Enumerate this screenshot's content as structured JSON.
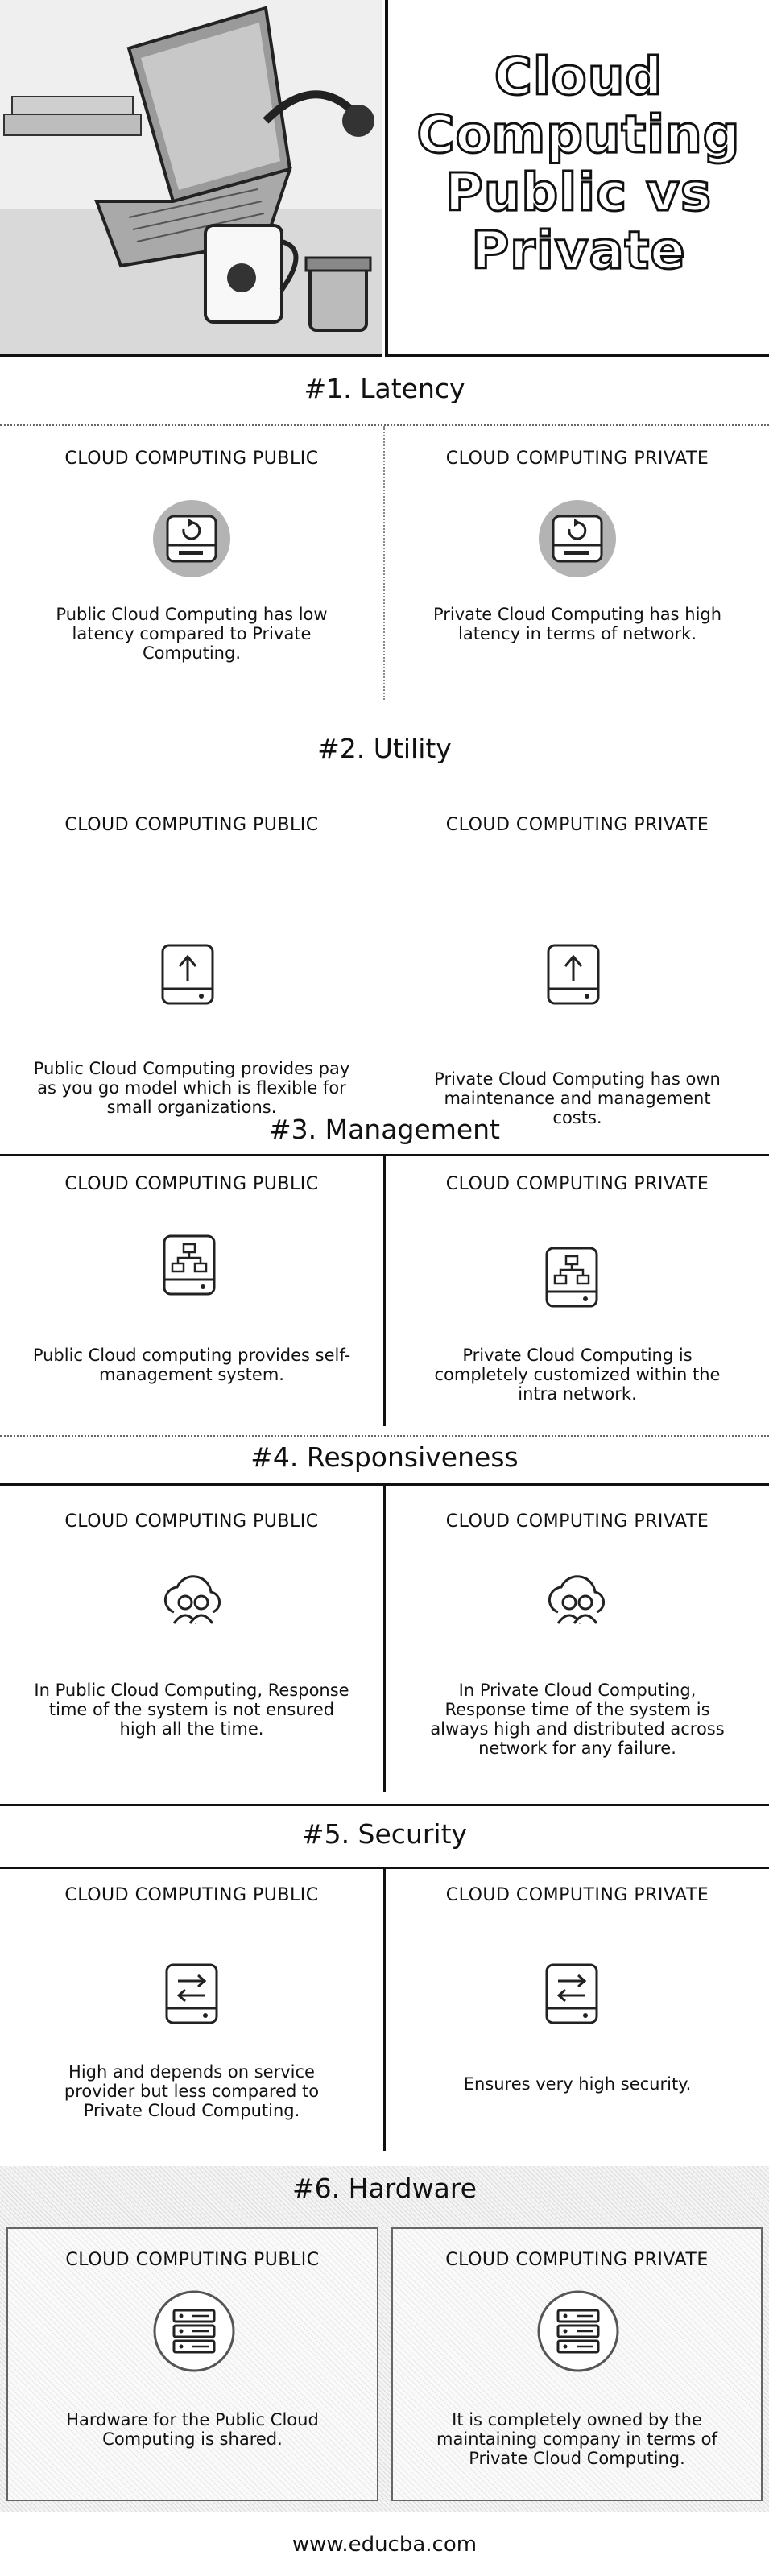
{
  "header": {
    "title_lines": [
      "Cloud",
      "Computing",
      "Public vs",
      "Private"
    ]
  },
  "sections": [
    {
      "title": "#1. Latency",
      "public": {
        "heading": "CLOUD COMPUTING PUBLIC",
        "text": "Public Cloud Computing has low latency compared to Private Computing."
      },
      "private": {
        "heading": "CLOUD COMPUTING PRIVATE",
        "text": "Private Cloud Computing has high latency in terms of network."
      }
    },
    {
      "title": "#2. Utility",
      "public": {
        "heading": "CLOUD COMPUTING PUBLIC",
        "text": "Public Cloud Computing provides pay as you go model which is flexible for small organizations."
      },
      "private": {
        "heading": "CLOUD COMPUTING PRIVATE",
        "text": "Private Cloud Computing has own maintenance and management costs."
      }
    },
    {
      "title": "#3. Management",
      "public": {
        "heading": "CLOUD COMPUTING PUBLIC",
        "text": "Public Cloud computing provides self-management system."
      },
      "private": {
        "heading": "CLOUD COMPUTING PRIVATE",
        "text": "Private Cloud Computing is completely customized within the intra network."
      }
    },
    {
      "title": "#4. Responsiveness",
      "public": {
        "heading": "CLOUD COMPUTING PUBLIC",
        "text": "In Public Cloud Computing, Response time of the system is not ensured high all the time."
      },
      "private": {
        "heading": "CLOUD COMPUTING PRIVATE",
        "text": "In Private Cloud Computing, Response time of the system is always high and distributed across network for any failure."
      }
    },
    {
      "title": "#5. Security",
      "public": {
        "heading": "CLOUD COMPUTING PUBLIC",
        "text": "High and depends on service provider but less compared to Private Cloud Computing."
      },
      "private": {
        "heading": "CLOUD COMPUTING PRIVATE",
        "text": "Ensures very high security."
      }
    },
    {
      "title": "#6. Hardware",
      "public": {
        "heading": "CLOUD COMPUTING PUBLIC",
        "text": "Hardware for the Public Cloud Computing is shared."
      },
      "private": {
        "heading": "CLOUD COMPUTING PRIVATE",
        "text": "It is completely owned by the maintaining company in terms of Private Cloud Computing."
      }
    }
  ],
  "icons": {
    "latency": "storage-refresh-icon",
    "utility": "storage-upload-icon",
    "management": "storage-network-icon",
    "responsiveness": "cloud-users-icon",
    "security": "storage-transfer-icon",
    "hardware": "server-rack-icon"
  },
  "footer": {
    "website": "www.educba.com"
  }
}
